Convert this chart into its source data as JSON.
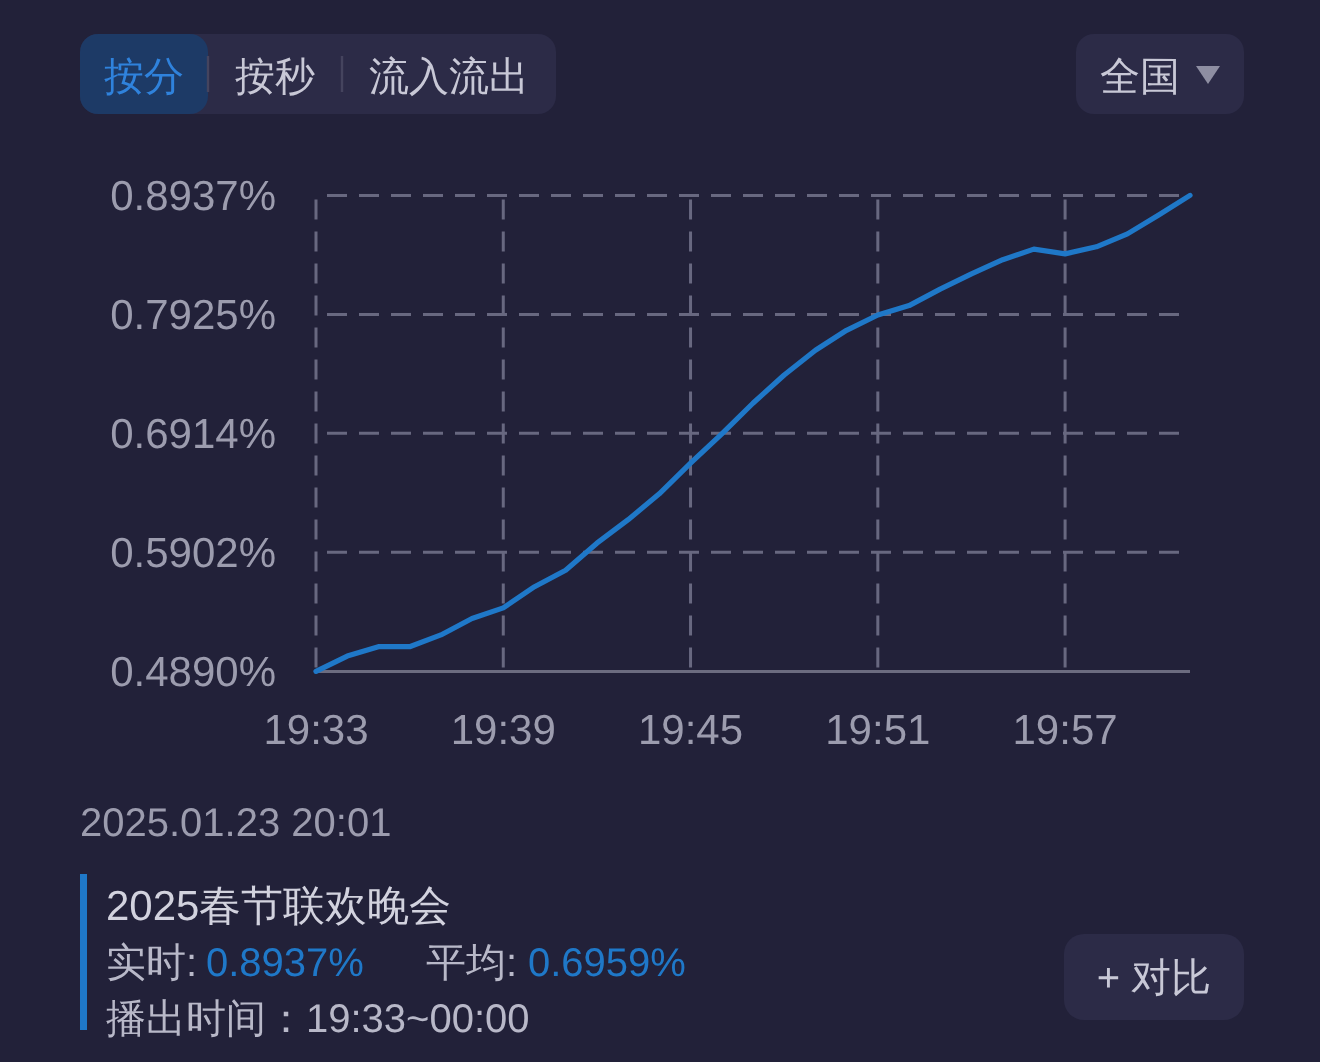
{
  "chart_data": {
    "type": "line",
    "x": [
      19.55,
      19.5667,
      19.5833,
      19.6,
      19.6167,
      19.6333,
      19.65,
      19.6667,
      19.6833,
      19.7,
      19.7167,
      19.7333,
      19.75,
      19.7667,
      19.7833,
      19.8,
      19.8167,
      19.8333,
      19.85,
      19.8667,
      19.8833,
      19.9,
      19.9167,
      19.9333,
      19.95,
      19.9667,
      19.9833,
      20.0,
      20.0167
    ],
    "series": [
      {
        "name": "2025春节联欢晚会",
        "color": "#1f78c8",
        "values": [
          0.489,
          0.502,
          0.51,
          0.51,
          0.52,
          0.534,
          0.543,
          0.561,
          0.575,
          0.598,
          0.618,
          0.64,
          0.666,
          0.691,
          0.717,
          0.741,
          0.762,
          0.779,
          0.792,
          0.8,
          0.814,
          0.827,
          0.839,
          0.848,
          0.844,
          0.85,
          0.861,
          0.877,
          0.8937
        ]
      }
    ],
    "xlim": [
      19.55,
      20.0167
    ],
    "xticks": [
      {
        "value": 19.55,
        "label": "19:33"
      },
      {
        "value": 19.65,
        "label": "19:39"
      },
      {
        "value": 19.75,
        "label": "19:45"
      },
      {
        "value": 19.85,
        "label": "19:51"
      },
      {
        "value": 19.95,
        "label": "19:57"
      }
    ],
    "ylim": [
      0.489,
      0.8937
    ],
    "yticks": [
      {
        "value": 0.489,
        "label": "0.4890%"
      },
      {
        "value": 0.5902,
        "label": "0.5902%"
      },
      {
        "value": 0.6914,
        "label": "0.6914%"
      },
      {
        "value": 0.7925,
        "label": "0.7925%"
      },
      {
        "value": 0.8937,
        "label": "0.8937%"
      }
    ],
    "grid": true,
    "legend": "bottom",
    "annotations": [
      "按分",
      "按秒",
      "流入流出",
      "全国",
      "2025.01.23 20:01",
      "实时:",
      "0.8937%",
      "平均:",
      "0.6959%",
      "播出时间：19:33~00:00",
      "+ 对比"
    ]
  }
}
